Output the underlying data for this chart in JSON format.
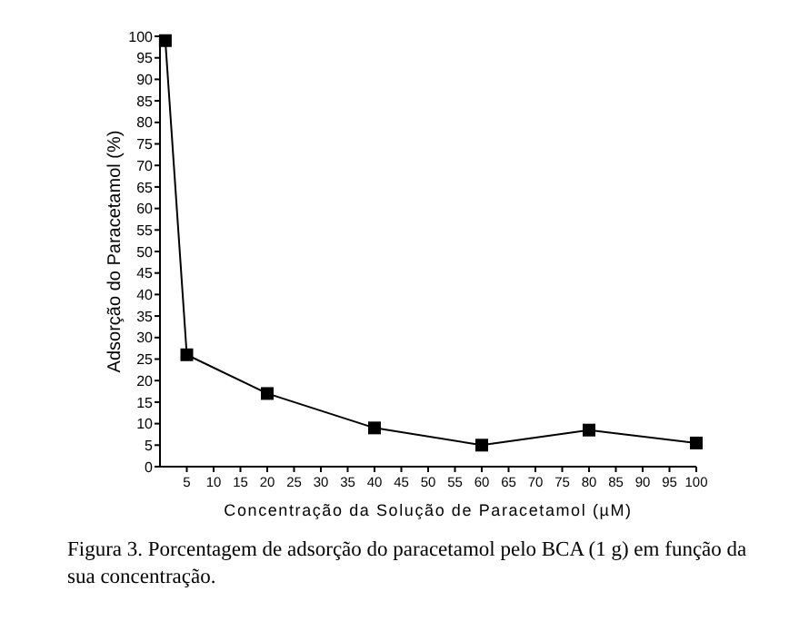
{
  "chart_data": {
    "type": "line",
    "xlabel": "Concentração da Solução de Paracetamol (µM)",
    "ylabel": "Adsorção do Paracetamol (%)",
    "x": [
      1,
      5,
      20,
      40,
      60,
      80,
      100
    ],
    "series": [
      {
        "color": "#000000",
        "values": [
          99,
          26,
          17,
          9,
          5,
          8.5,
          5.5
        ]
      }
    ],
    "xlim": [
      0,
      100
    ],
    "xticks": [
      5,
      10,
      15,
      20,
      25,
      30,
      35,
      40,
      45,
      50,
      55,
      60,
      65,
      70,
      75,
      80,
      85,
      90,
      95,
      100
    ],
    "ylim": [
      0,
      100
    ],
    "yticks": [
      0,
      5,
      10,
      15,
      20,
      25,
      30,
      35,
      40,
      45,
      50,
      55,
      60,
      65,
      70,
      75,
      80,
      85,
      90,
      95,
      100
    ],
    "marker": "square",
    "line_style": "solid",
    "grid": false,
    "annotations": [
      "Figura 3. Porcentagem de adsorção do paracetamol pelo BCA (1 g) em função da sua concentração."
    ]
  }
}
